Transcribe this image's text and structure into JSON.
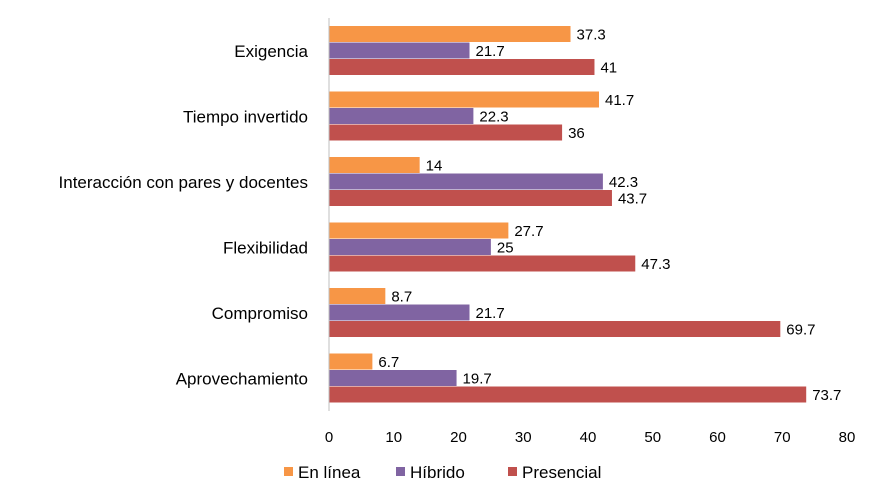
{
  "chart_data": {
    "type": "bar",
    "orientation": "horizontal",
    "categories": [
      "Exigencia",
      "Tiempo invertido",
      "Interacción con pares y docentes",
      "Flexibilidad",
      "Compromiso",
      "Aprovechamiento"
    ],
    "series": [
      {
        "name": "En línea",
        "color": "#F79646",
        "values": [
          37.3,
          41.7,
          14,
          27.7,
          8.7,
          6.7
        ]
      },
      {
        "name": "Híbrido",
        "color": "#8064A2",
        "values": [
          21.7,
          22.3,
          42.3,
          25,
          21.7,
          19.7
        ]
      },
      {
        "name": "Presencial",
        "color": "#C0504D",
        "values": [
          41,
          36,
          43.7,
          47.3,
          69.7,
          73.7
        ]
      }
    ],
    "xlim": [
      0,
      80
    ],
    "xticks": [
      0,
      10,
      20,
      30,
      40,
      50,
      60,
      70,
      80
    ],
    "grid": false,
    "legend_position": "bottom",
    "data_labels": true
  }
}
